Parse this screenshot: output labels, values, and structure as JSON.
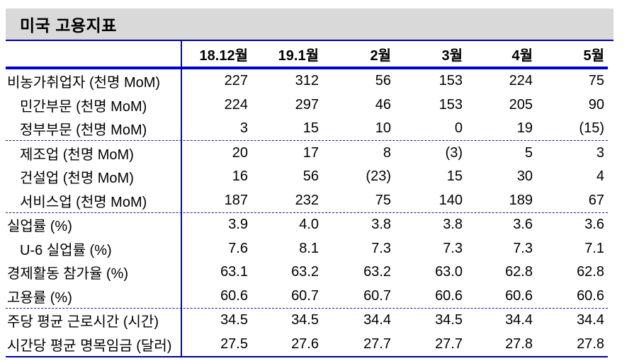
{
  "title": "미국 고용지표",
  "table": {
    "columns": [
      "18.12월",
      "19.1월",
      "2월",
      "3월",
      "4월",
      "5월"
    ],
    "rows": [
      {
        "label": "비농가취업자 (천명 MoM)",
        "indent": false,
        "section_end": false,
        "values": [
          "227",
          "312",
          "56",
          "153",
          "224",
          "75"
        ]
      },
      {
        "label": "민간부문 (천명 MoM)",
        "indent": true,
        "section_end": false,
        "values": [
          "224",
          "297",
          "46",
          "153",
          "205",
          "90"
        ]
      },
      {
        "label": "정부부문 (천명 MoM)",
        "indent": true,
        "section_end": true,
        "values": [
          "3",
          "15",
          "10",
          "0",
          "19",
          "(15)"
        ]
      },
      {
        "label": "제조업 (천명 MoM)",
        "indent": true,
        "section_end": false,
        "values": [
          "20",
          "17",
          "8",
          "(3)",
          "5",
          "3"
        ]
      },
      {
        "label": "건설업 (천명 MoM)",
        "indent": true,
        "section_end": false,
        "values": [
          "16",
          "56",
          "(23)",
          "15",
          "30",
          "4"
        ]
      },
      {
        "label": "서비스업 (천명 MoM)",
        "indent": true,
        "section_end": true,
        "values": [
          "187",
          "232",
          "75",
          "140",
          "189",
          "67"
        ]
      },
      {
        "label": "실업률 (%)",
        "indent": false,
        "section_end": false,
        "values": [
          "3.9",
          "4.0",
          "3.8",
          "3.8",
          "3.6",
          "3.6"
        ]
      },
      {
        "label": "U-6 실업률 (%)",
        "indent": true,
        "section_end": false,
        "values": [
          "7.6",
          "8.1",
          "7.3",
          "7.3",
          "7.3",
          "7.1"
        ]
      },
      {
        "label": "경제활동 참가율 (%)",
        "indent": false,
        "section_end": false,
        "values": [
          "63.1",
          "63.2",
          "63.2",
          "63.0",
          "62.8",
          "62.8"
        ]
      },
      {
        "label": "고용률 (%)",
        "indent": false,
        "section_end": true,
        "values": [
          "60.6",
          "60.7",
          "60.7",
          "60.6",
          "60.6",
          "60.6"
        ]
      },
      {
        "label": "주당 평균 근로시간 (시간)",
        "indent": false,
        "section_end": false,
        "values": [
          "34.5",
          "34.5",
          "34.4",
          "34.5",
          "34.4",
          "34.4"
        ]
      },
      {
        "label": "시간당 평균 명목임금 (달러)",
        "indent": false,
        "section_end": false,
        "values": [
          "27.5",
          "27.6",
          "27.7",
          "27.7",
          "27.8",
          "27.8"
        ]
      }
    ]
  },
  "colors": {
    "title_bar_bg": "#d9d9d9",
    "rule_navy": "#000099",
    "rule_blue": "#0000cc",
    "dashed_rule": "#1a1a8c",
    "text": "#000000"
  }
}
